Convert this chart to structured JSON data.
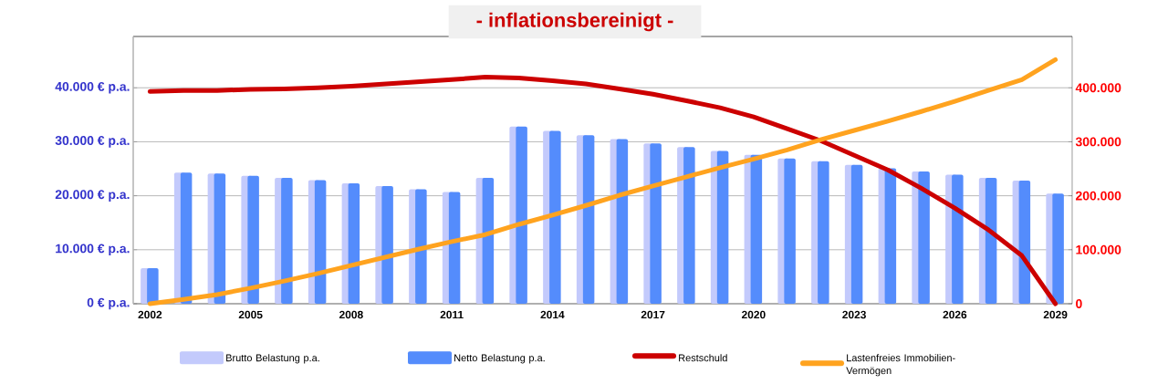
{
  "chart_data": {
    "type": "bar",
    "title": "- inflationsbereinigt -",
    "categories": [
      "2002",
      null,
      null,
      "2005",
      null,
      null,
      "2008",
      null,
      null,
      "2011",
      null,
      null,
      "2014",
      null,
      null,
      "2017",
      null,
      null,
      "2020",
      null,
      null,
      "2023",
      null,
      null,
      "2026",
      null,
      null,
      "2029"
    ],
    "series": [
      {
        "name": "Brutto Belastung p.a.",
        "color": "#c3cafc",
        "values": [
          6600,
          24300,
          24100,
          23700,
          23300,
          22900,
          22300,
          21800,
          21200,
          20700,
          23300,
          32800,
          32000,
          31200,
          30500,
          29700,
          29000,
          28300,
          27600,
          26900,
          26400,
          25700,
          25100,
          24500,
          23900,
          23300,
          22800,
          20400
        ]
      },
      {
        "name": "Netto Belastung p.a.",
        "color": "#548cfc",
        "values": [
          6600,
          24300,
          24100,
          23700,
          23300,
          22900,
          22300,
          21800,
          21200,
          20700,
          23300,
          32800,
          32000,
          31200,
          30500,
          29700,
          29000,
          28300,
          27600,
          26900,
          26400,
          25700,
          25100,
          24500,
          23900,
          23300,
          22800,
          20400
        ]
      },
      {
        "name": "Restschuld",
        "type": "line",
        "axis": "y2",
        "color": "#cc0000",
        "values": [
          393000,
          395000,
          395000,
          397000,
          398000,
          400000,
          403000,
          407000,
          411000,
          415000,
          420000,
          418000,
          413000,
          407000,
          398000,
          388000,
          376000,
          363000,
          346000,
          324000,
          302000,
          275000,
          248000,
          214000,
          177000,
          137000,
          89000,
          0
        ]
      },
      {
        "name": "Lastenfreies Immobilien-Vermögen",
        "type": "line",
        "axis": "y2",
        "color": "#ffa31f",
        "values": [
          0,
          8000,
          17000,
          29000,
          42000,
          56000,
          71000,
          86000,
          101000,
          115000,
          128000,
          147000,
          164000,
          182000,
          201000,
          218000,
          235000,
          252000,
          268000,
          285000,
          304000,
          321000,
          338000,
          356000,
          375000,
          395000,
          415000,
          452000
        ]
      }
    ],
    "ylim": [
      0,
      49500
    ],
    "yticks": [
      {
        "value": 0,
        "label": "0 € p.a."
      },
      {
        "value": 10000,
        "label": "10.000 € p.a."
      },
      {
        "value": 20000,
        "label": "20.000 € p.a."
      },
      {
        "value": 30000,
        "label": "30.000 € p.a."
      },
      {
        "value": 40000,
        "label": "40.000 € p.a."
      }
    ],
    "y2lim": [
      0,
      495000
    ],
    "y2ticks": [
      0,
      {
        "value": 100000,
        "label": "100.000"
      },
      {
        "value": 200000,
        "label": "200.000"
      },
      {
        "value": 300000,
        "label": "300.000"
      },
      {
        "value": 400000,
        "label": "400.000"
      }
    ],
    "grid": "y",
    "legend": "bottom",
    "line_style": "solid",
    "marker": "none"
  }
}
